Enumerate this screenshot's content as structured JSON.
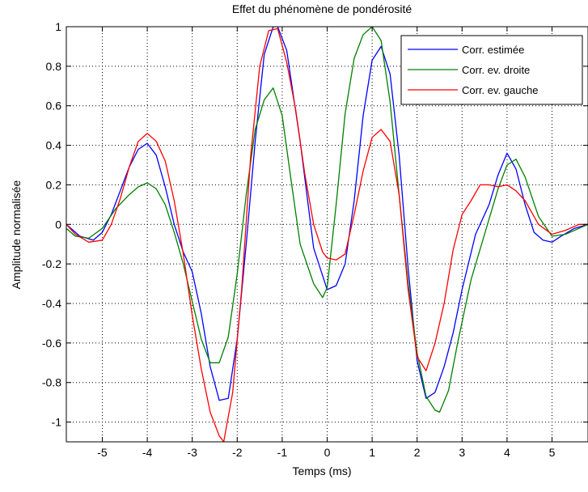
{
  "chart_data": {
    "type": "line",
    "title": "Effet du phénomène de pondérosité",
    "xlabel": "Temps (ms)",
    "ylabel": "Amplitude normalisée",
    "xlim": [
      -5.8,
      5.8
    ],
    "ylim": [
      -1.1,
      1.0
    ],
    "xticks": [
      -5,
      -4,
      -3,
      -2,
      -1,
      0,
      1,
      2,
      3,
      4,
      5
    ],
    "yticks": [
      -1,
      -0.8,
      -0.6,
      -0.4,
      -0.2,
      0,
      0.2,
      0.4,
      0.6,
      0.8,
      1
    ],
    "xtick_labels": [
      "-5",
      "-4",
      "-3",
      "-2",
      "-1",
      "0",
      "1",
      "2",
      "3",
      "4",
      "5"
    ],
    "ytick_labels": [
      "-1",
      "-0.8",
      "-0.6",
      "-0.4",
      "-0.2",
      "0",
      "0.2",
      "0.4",
      "0.6",
      "0.8",
      "1"
    ],
    "grid": true,
    "legend_position": "top-right",
    "series": [
      {
        "name": "Corr. estimée",
        "color": "#0000ff",
        "x": [
          -5.8,
          -5.5,
          -5.2,
          -5.0,
          -4.8,
          -4.6,
          -4.4,
          -4.2,
          -4.0,
          -3.8,
          -3.6,
          -3.4,
          -3.2,
          -3.0,
          -2.8,
          -2.6,
          -2.4,
          -2.2,
          -2.0,
          -1.8,
          -1.6,
          -1.4,
          -1.2,
          -1.1,
          -0.9,
          -0.6,
          -0.3,
          0.0,
          0.2,
          0.4,
          0.6,
          0.8,
          1.0,
          1.2,
          1.4,
          1.6,
          1.8,
          2.0,
          2.2,
          2.4,
          2.6,
          2.8,
          3.0,
          3.3,
          3.6,
          3.8,
          4.0,
          4.2,
          4.4,
          4.6,
          4.8,
          5.0,
          5.2,
          5.5,
          5.8
        ],
        "y": [
          0.0,
          -0.06,
          -0.08,
          -0.04,
          0.05,
          0.17,
          0.29,
          0.38,
          0.41,
          0.35,
          0.19,
          0.0,
          -0.14,
          -0.24,
          -0.45,
          -0.72,
          -0.89,
          -0.88,
          -0.58,
          -0.1,
          0.42,
          0.86,
          1.0,
          1.0,
          0.88,
          0.42,
          -0.12,
          -0.33,
          -0.31,
          -0.2,
          0.12,
          0.55,
          0.83,
          0.9,
          0.76,
          0.35,
          -0.22,
          -0.69,
          -0.88,
          -0.85,
          -0.72,
          -0.55,
          -0.33,
          -0.05,
          0.1,
          0.25,
          0.36,
          0.28,
          0.1,
          -0.04,
          -0.08,
          -0.09,
          -0.06,
          -0.02,
          0.0
        ]
      },
      {
        "name": "Corr. ev. droite",
        "color": "#008000",
        "x": [
          -5.8,
          -5.6,
          -5.3,
          -5.0,
          -4.7,
          -4.4,
          -4.2,
          -4.0,
          -3.8,
          -3.6,
          -3.4,
          -3.2,
          -3.0,
          -2.8,
          -2.6,
          -2.4,
          -2.2,
          -2.0,
          -1.8,
          -1.6,
          -1.4,
          -1.2,
          -1.0,
          -0.8,
          -0.6,
          -0.3,
          -0.1,
          0.0,
          0.2,
          0.4,
          0.6,
          0.8,
          1.0,
          1.2,
          1.4,
          1.6,
          1.8,
          2.0,
          2.2,
          2.4,
          2.5,
          2.7,
          2.9,
          3.2,
          3.5,
          3.8,
          4.0,
          4.2,
          4.4,
          4.7,
          5.0,
          5.3,
          5.6,
          5.8
        ],
        "y": [
          -0.02,
          -0.06,
          -0.07,
          -0.02,
          0.08,
          0.15,
          0.19,
          0.21,
          0.18,
          0.1,
          -0.04,
          -0.2,
          -0.39,
          -0.58,
          -0.7,
          -0.7,
          -0.57,
          -0.25,
          0.15,
          0.48,
          0.63,
          0.69,
          0.55,
          0.22,
          -0.1,
          -0.3,
          -0.37,
          -0.32,
          0.1,
          0.56,
          0.84,
          0.96,
          1.0,
          0.93,
          0.62,
          0.15,
          -0.3,
          -0.65,
          -0.87,
          -0.94,
          -0.95,
          -0.84,
          -0.6,
          -0.28,
          -0.05,
          0.18,
          0.3,
          0.33,
          0.24,
          0.04,
          -0.06,
          -0.05,
          -0.02,
          0.0
        ]
      },
      {
        "name": "Corr. ev. gauche",
        "color": "#ff0000",
        "x": [
          -5.8,
          -5.6,
          -5.3,
          -5.0,
          -4.8,
          -4.6,
          -4.4,
          -4.2,
          -4.0,
          -3.8,
          -3.6,
          -3.4,
          -3.2,
          -3.0,
          -2.8,
          -2.6,
          -2.4,
          -2.3,
          -2.1,
          -1.9,
          -1.7,
          -1.5,
          -1.3,
          -1.1,
          -0.9,
          -0.7,
          -0.5,
          -0.3,
          -0.1,
          0.0,
          0.2,
          0.4,
          0.6,
          0.8,
          1.0,
          1.2,
          1.4,
          1.6,
          1.8,
          2.0,
          2.2,
          2.4,
          2.6,
          2.8,
          3.0,
          3.2,
          3.4,
          3.6,
          3.8,
          4.0,
          4.2,
          4.4,
          4.7,
          5.0,
          5.3,
          5.6,
          5.8
        ],
        "y": [
          0.0,
          -0.05,
          -0.09,
          -0.08,
          0.0,
          0.13,
          0.29,
          0.42,
          0.46,
          0.42,
          0.32,
          0.12,
          -0.15,
          -0.46,
          -0.73,
          -0.95,
          -1.07,
          -1.1,
          -0.85,
          -0.32,
          0.35,
          0.8,
          0.98,
          0.99,
          0.82,
          0.58,
          0.26,
          0.0,
          -0.14,
          -0.17,
          -0.18,
          -0.15,
          0.05,
          0.27,
          0.44,
          0.48,
          0.42,
          0.15,
          -0.33,
          -0.67,
          -0.74,
          -0.6,
          -0.4,
          -0.13,
          0.05,
          0.12,
          0.2,
          0.2,
          0.19,
          0.2,
          0.17,
          0.12,
          0.0,
          -0.05,
          -0.03,
          0.0,
          0.0
        ]
      }
    ]
  }
}
